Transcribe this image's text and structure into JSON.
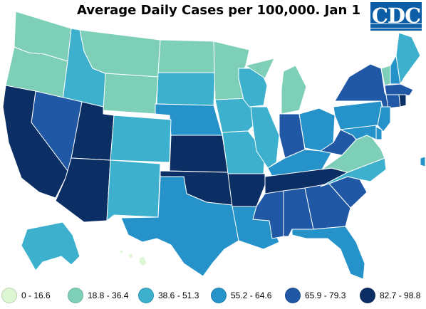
{
  "title": "Average Daily Cases per 100,000. Jan 1",
  "logo": {
    "text": "CDC",
    "color": "#0b5da6"
  },
  "legend": [
    {
      "label": "0 - 16.6",
      "color": "#ddf6d3"
    },
    {
      "label": "18.8 - 36.4",
      "color": "#7ecfb8"
    },
    {
      "label": "38.6 - 51.3",
      "color": "#3cb0cd"
    },
    {
      "label": "55.2 - 64.6",
      "color": "#2592c9"
    },
    {
      "label": "65.9 - 79.3",
      "color": "#2158a5"
    },
    {
      "label": "82.7 - 98.8",
      "color": "#0b2f64"
    }
  ],
  "states": {
    "WA": 1,
    "OR": 1,
    "MT": 1,
    "ID": 2,
    "WY": 1,
    "ND": 1,
    "SD": 2,
    "MN": 1,
    "NV": 4,
    "CA": 5,
    "UT": 5,
    "AZ": 5,
    "CO": 2,
    "NM": 2,
    "NE": 3,
    "KS": 5,
    "OK": 5,
    "TX": 3,
    "IA": 2,
    "MO": 2,
    "AR": 5,
    "LA": 3,
    "WI": 2,
    "IL": 2,
    "MI": 1,
    "IN": 4,
    "OH": 3,
    "KY": 3,
    "TN": 5,
    "MS": 4,
    "AL": 4,
    "GA": 4,
    "FL": 3,
    "SC": 4,
    "NC": 2,
    "VA": 1,
    "WV": 4,
    "PA": 3,
    "NY": 4,
    "VT": 1,
    "NH": 3,
    "ME": 2,
    "MA": 4,
    "RI": 5,
    "CT": 4,
    "NJ": 3,
    "DE": 3,
    "MD": 3,
    "AK": 2,
    "HI": 0
  }
}
